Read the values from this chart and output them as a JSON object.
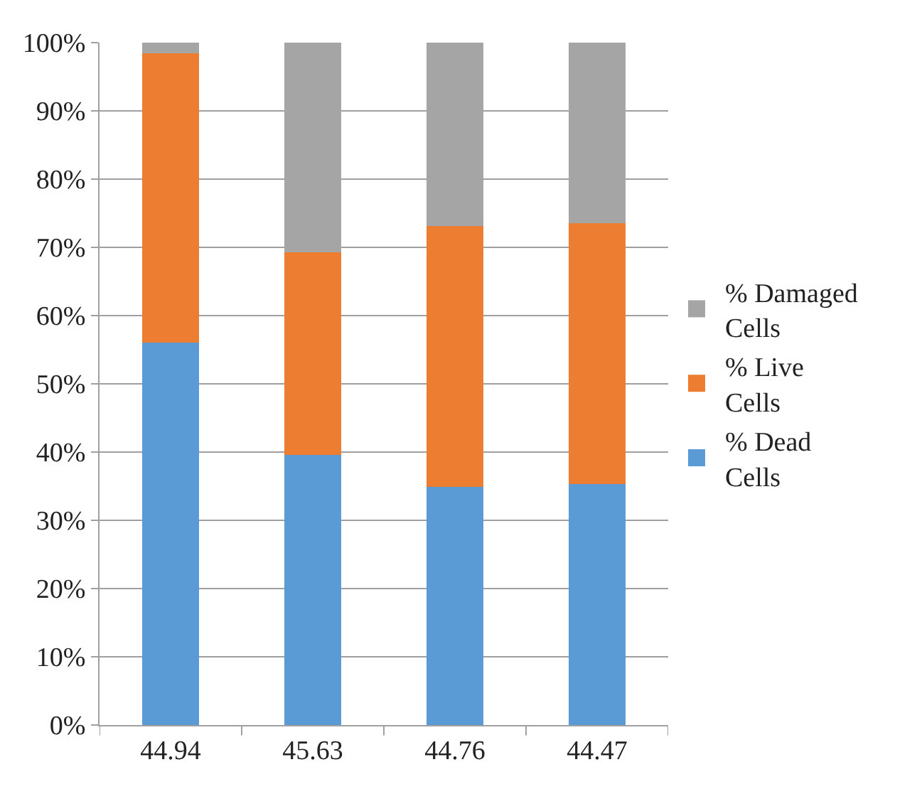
{
  "chart_data": {
    "type": "bar",
    "stacked": true,
    "categories": [
      "44.94",
      "45.63",
      "44.76",
      "44.47"
    ],
    "series": [
      {
        "name": "% Dead Cells",
        "color": "#5b9bd5",
        "values": [
          56,
          39.6,
          34.9,
          35.3
        ]
      },
      {
        "name": "% Live Cells",
        "color": "#ed7d31",
        "values": [
          42.4,
          29.7,
          38.2,
          38.2
        ]
      },
      {
        "name": "% Damaged Cells",
        "color": "#a5a5a5",
        "values": [
          1.6,
          30.7,
          26.9,
          26.5
        ]
      }
    ],
    "ylim": [
      0,
      100
    ],
    "yticks": [
      {
        "value": 0,
        "label": "0%"
      },
      {
        "value": 10,
        "label": "10%"
      },
      {
        "value": 20,
        "label": "20%"
      },
      {
        "value": 30,
        "label": "30%"
      },
      {
        "value": 40,
        "label": "40%"
      },
      {
        "value": 50,
        "label": "50%"
      },
      {
        "value": 60,
        "label": "60%"
      },
      {
        "value": 70,
        "label": "70%"
      },
      {
        "value": 80,
        "label": "80%"
      },
      {
        "value": 90,
        "label": "90%"
      },
      {
        "value": 100,
        "label": "100%"
      }
    ],
    "grid": "y",
    "legend": "right"
  }
}
